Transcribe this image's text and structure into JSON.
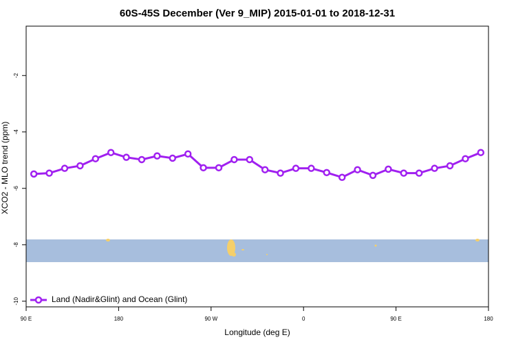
{
  "chart_data": {
    "type": "line",
    "title": "60S-45S December (Ver 9_MIP)   2015-01-01 to 2018-12-31",
    "x_label": "Longitude (deg E)",
    "y_label": "XCO2 - MLO trend (ppm)",
    "x": [
      97.5,
      112.5,
      127.5,
      142.5,
      157.5,
      172.5,
      187.5,
      202.5,
      217.5,
      232.5,
      247.5,
      262.5,
      277.5,
      292.5,
      307.5,
      322.5,
      337.5,
      352.5,
      367.5,
      382.5,
      397.5,
      412.5,
      427.5,
      442.5,
      457.5,
      472.5,
      487.5,
      502.5,
      517.5,
      532.5
    ],
    "series": [
      {
        "name": "Land (Nadir&Glint) and Ocean (Glint)",
        "color": "#a020f0",
        "values": [
          -5.49,
          -5.46,
          -5.29,
          -5.2,
          -4.95,
          -4.73,
          -4.9,
          -4.98,
          -4.85,
          -4.93,
          -4.78,
          -5.27,
          -5.27,
          -4.98,
          -4.98,
          -5.34,
          -5.46,
          -5.29,
          -5.29,
          -5.44,
          -5.61,
          -5.34,
          -5.54,
          -5.32,
          -5.46,
          -5.46,
          -5.29,
          -5.2,
          -4.95,
          -4.73
        ]
      }
    ],
    "xlim": [
      90,
      540
    ],
    "xticks": [
      {
        "value": 90,
        "label": "90 E"
      },
      180,
      {
        "value": 270,
        "label": "90 W"
      },
      {
        "value": 360,
        "label": "0"
      },
      {
        "value": 450,
        "label": "90 E"
      },
      {
        "value": 540,
        "label": "180"
      }
    ],
    "ylim": [
      -10.2,
      -0.25
    ],
    "yticks": [
      -2,
      -4,
      -6,
      -8,
      -10
    ],
    "legend": "bottom-left"
  }
}
